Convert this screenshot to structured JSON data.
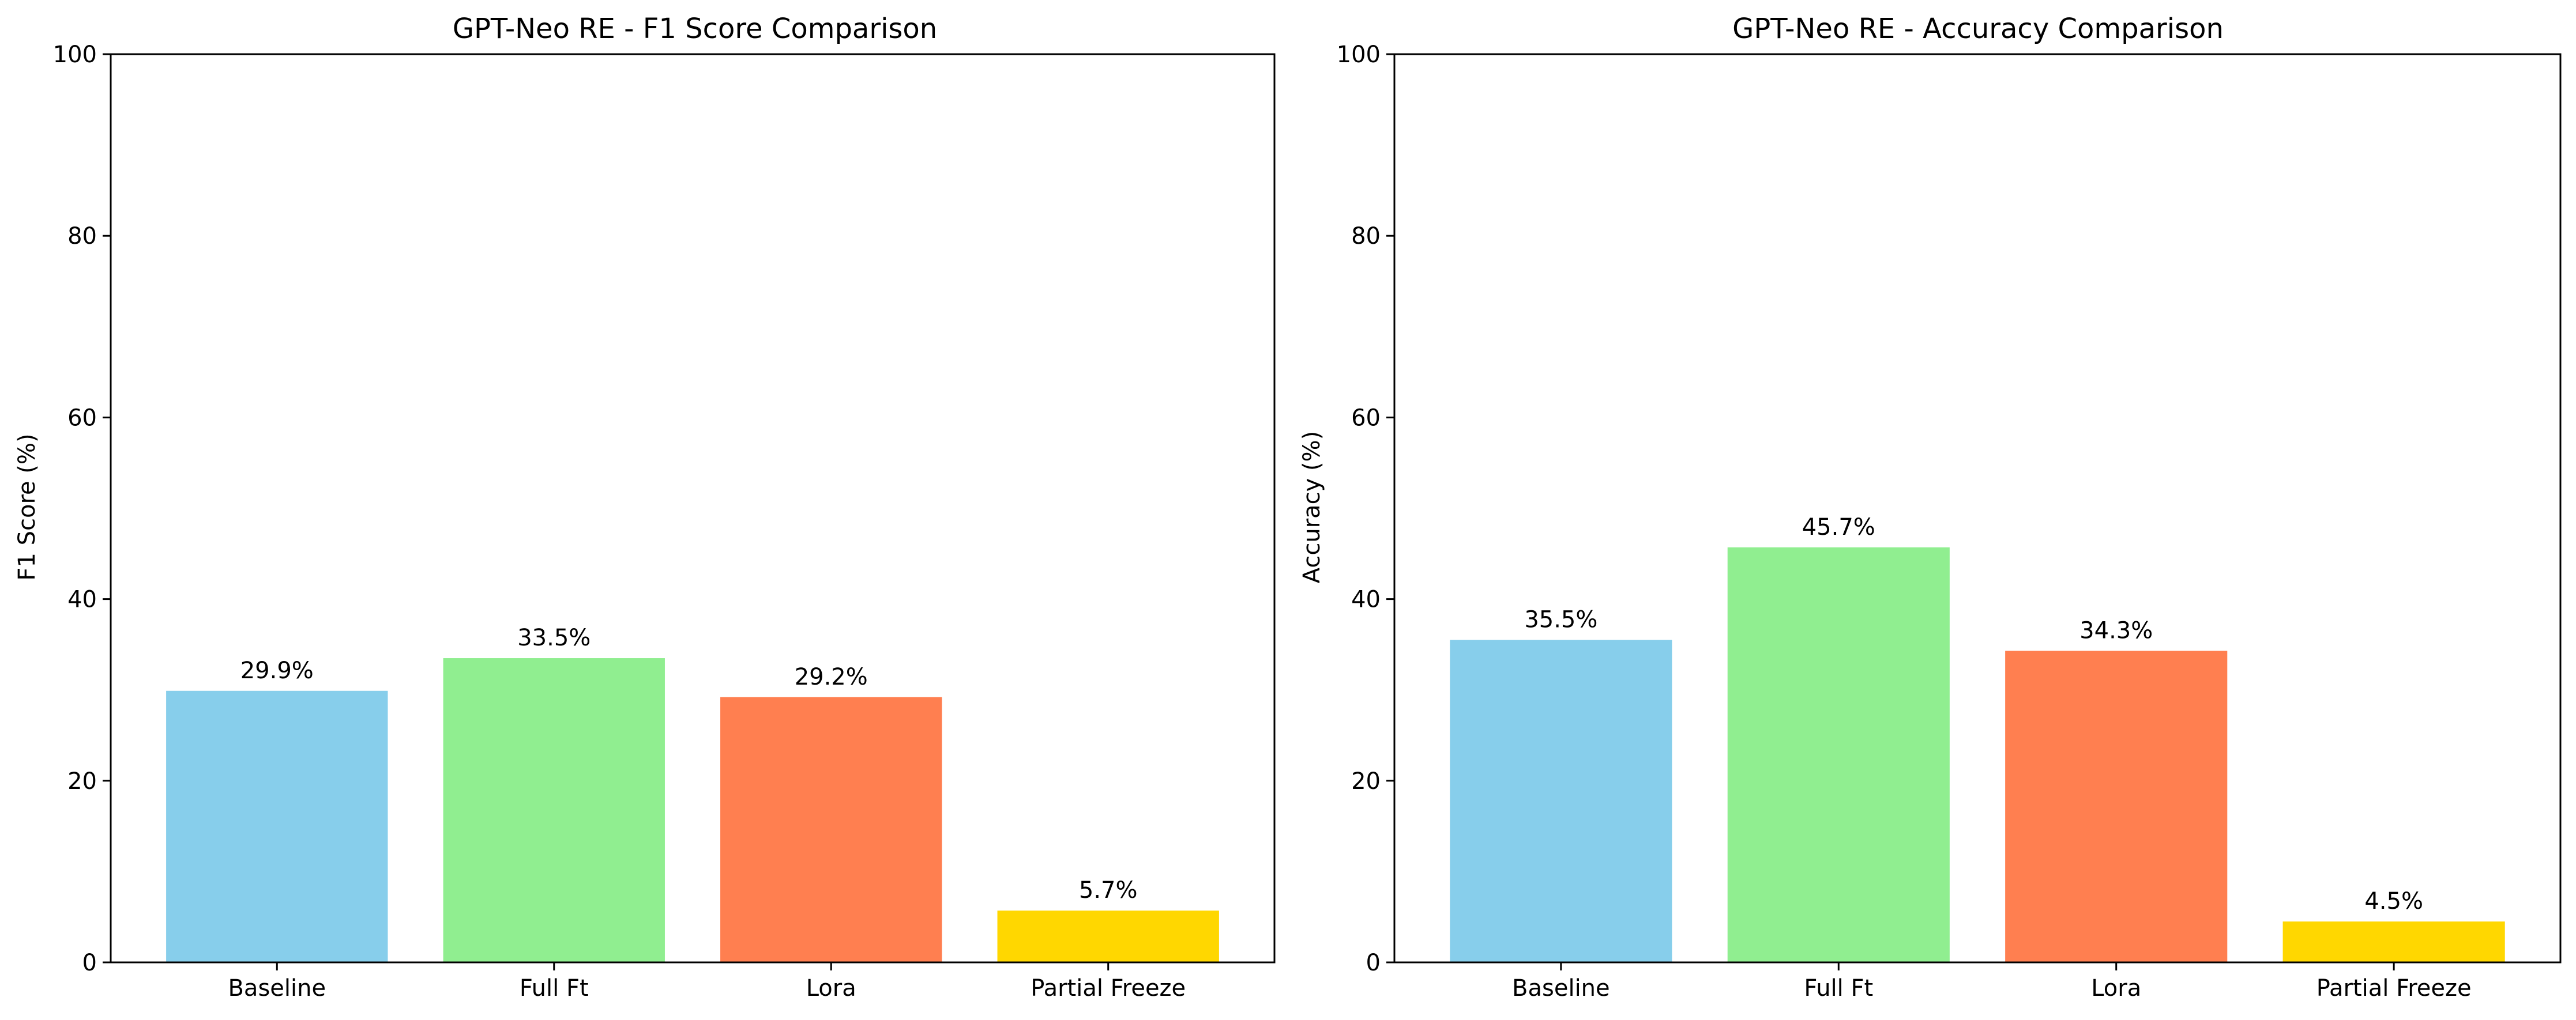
{
  "chart_data": [
    {
      "type": "bar",
      "title": "GPT-Neo RE - F1 Score Comparison",
      "xlabel": "",
      "ylabel": "F1 Score (%)",
      "ylim": [
        0,
        100
      ],
      "yticks": [
        0,
        20,
        40,
        60,
        80,
        100
      ],
      "grid": false,
      "categories": [
        "Baseline",
        "Full Ft",
        "Lora",
        "Partial Freeze"
      ],
      "values": [
        29.9,
        33.5,
        29.2,
        5.7
      ],
      "value_labels": [
        "29.9%",
        "33.5%",
        "29.2%",
        "5.7%"
      ],
      "colors": [
        "#87ceeb",
        "#90ee90",
        "#ff7f50",
        "#ffd700"
      ]
    },
    {
      "type": "bar",
      "title": "GPT-Neo RE - Accuracy Comparison",
      "xlabel": "",
      "ylabel": "Accuracy (%)",
      "ylim": [
        0,
        100
      ],
      "yticks": [
        0,
        20,
        40,
        60,
        80,
        100
      ],
      "grid": false,
      "categories": [
        "Baseline",
        "Full Ft",
        "Lora",
        "Partial Freeze"
      ],
      "values": [
        35.5,
        45.7,
        34.3,
        4.5
      ],
      "value_labels": [
        "35.5%",
        "45.7%",
        "34.3%",
        "4.5%"
      ],
      "colors": [
        "#87ceeb",
        "#90ee90",
        "#ff7f50",
        "#ffd700"
      ]
    }
  ]
}
